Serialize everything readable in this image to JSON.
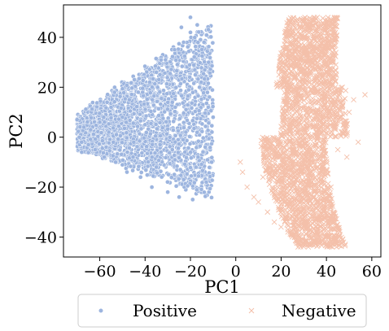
{
  "chart_data": {
    "type": "scatter",
    "xlabel": "PC1",
    "ylabel": "PC2",
    "xlim": [
      -76,
      64
    ],
    "ylim": [
      -48,
      53
    ],
    "xticks": [
      -60,
      -40,
      -20,
      0,
      20,
      40,
      60
    ],
    "yticks": [
      -40,
      -20,
      0,
      20,
      40
    ],
    "xtick_labels": [
      "−60",
      "−40",
      "−20",
      "0",
      "20",
      "40",
      "60"
    ],
    "ytick_labels": [
      "−40",
      "−20",
      "0",
      "20",
      "40"
    ],
    "grid": false,
    "legend_position": "bottom-center",
    "series": [
      {
        "name": "Positive",
        "marker": "dot",
        "color": "#9db5df",
        "x_range": [
          -70,
          -10
        ],
        "y_range": [
          -26,
          48
        ],
        "points": [
          [
            -70,
            7
          ],
          [
            -69,
            0
          ],
          [
            -68,
            -2
          ],
          [
            -67,
            4
          ],
          [
            -65,
            -3
          ],
          [
            -64,
            3
          ],
          [
            -62,
            -5
          ],
          [
            -60,
            6
          ],
          [
            -58,
            -8
          ],
          [
            -56,
            2
          ],
          [
            -55,
            12
          ],
          [
            -53,
            -10
          ],
          [
            -50,
            8
          ],
          [
            -48,
            -14
          ],
          [
            -47,
            15
          ],
          [
            -45,
            -2
          ],
          [
            -43,
            18
          ],
          [
            -42,
            -16
          ],
          [
            -40,
            5
          ],
          [
            -38,
            22
          ],
          [
            -37,
            -20
          ],
          [
            -35,
            26
          ],
          [
            -33,
            -6
          ],
          [
            -31,
            31
          ],
          [
            -30,
            -22
          ],
          [
            -28,
            14
          ],
          [
            -27,
            35
          ],
          [
            -25,
            -24
          ],
          [
            -23,
            38
          ],
          [
            -22,
            2
          ],
          [
            -20,
            42
          ],
          [
            -19,
            -25
          ],
          [
            -17,
            45
          ],
          [
            -16,
            20
          ],
          [
            -14,
            38
          ],
          [
            -13,
            -18
          ],
          [
            -12,
            30
          ],
          [
            -10,
            8
          ],
          [
            -20,
            48
          ],
          [
            -24,
            44
          ],
          [
            -35,
            -12
          ],
          [
            -28,
            -5
          ]
        ]
      },
      {
        "name": "Negative",
        "marker": "x",
        "color": "#f4c0aa",
        "x_range": [
          2,
          57
        ],
        "y_range": [
          -44,
          48
        ],
        "points": [
          [
            2,
            -10
          ],
          [
            3,
            -14
          ],
          [
            5,
            -20
          ],
          [
            8,
            -24
          ],
          [
            10,
            -26
          ],
          [
            12,
            -16
          ],
          [
            14,
            -30
          ],
          [
            15,
            -12
          ],
          [
            17,
            -34
          ],
          [
            18,
            -8
          ],
          [
            20,
            -36
          ],
          [
            22,
            5
          ],
          [
            23,
            -38
          ],
          [
            25,
            18
          ],
          [
            26,
            -40
          ],
          [
            28,
            30
          ],
          [
            29,
            -42
          ],
          [
            30,
            40
          ],
          [
            31,
            46
          ],
          [
            32,
            -44
          ],
          [
            33,
            44
          ],
          [
            34,
            -30
          ],
          [
            35,
            36
          ],
          [
            36,
            0
          ],
          [
            38,
            25
          ],
          [
            39,
            -15
          ],
          [
            40,
            35
          ],
          [
            41,
            10
          ],
          [
            42,
            -20
          ],
          [
            43,
            30
          ],
          [
            44,
            18
          ],
          [
            45,
            -5
          ],
          [
            46,
            12
          ],
          [
            47,
            20
          ],
          [
            48,
            5
          ],
          [
            49,
            -8
          ],
          [
            50,
            10
          ],
          [
            52,
            15
          ],
          [
            54,
            -2
          ],
          [
            57,
            17
          ],
          [
            36,
            48
          ],
          [
            28,
            2
          ]
        ]
      }
    ]
  }
}
